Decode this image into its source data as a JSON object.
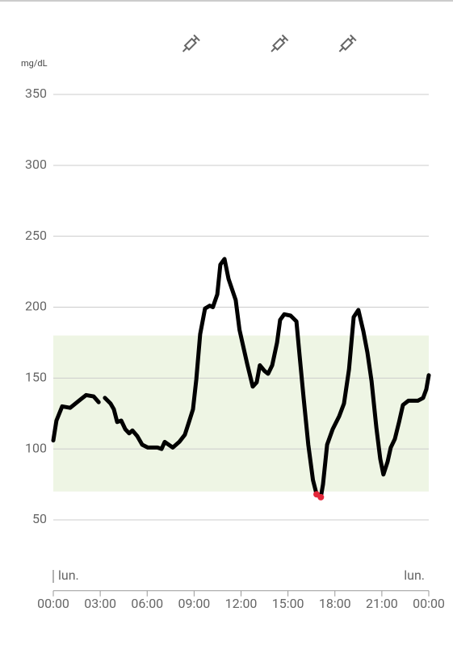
{
  "chart_data": {
    "type": "line",
    "y_unit": "mg/dL",
    "x": [
      0,
      0.2,
      0.57,
      1.08,
      1.75,
      2.1,
      2.58,
      2.9,
      3.1,
      3.3,
      3.66,
      3.87,
      4.08,
      4.34,
      4.6,
      4.85,
      5.06,
      5.37,
      5.68,
      6.04,
      6.66,
      6.92,
      7.12,
      7.64,
      8.05,
      8.41,
      8.67,
      8.93,
      9.14,
      9.39,
      9.7,
      10.0,
      10.2,
      10.48,
      10.68,
      10.94,
      11.2,
      11.66,
      11.9,
      12.39,
      12.75,
      13.0,
      13.2,
      13.5,
      13.73,
      13.99,
      14.3,
      14.5,
      14.76,
      15.17,
      15.54,
      15.74,
      16.0,
      16.3,
      16.6,
      16.83,
      17.1,
      17.24,
      17.5,
      17.86,
      18.27,
      18.58,
      18.9,
      19.2,
      19.5,
      19.82,
      20.08,
      20.34,
      20.65,
      20.9,
      21.1,
      21.37,
      21.57,
      21.83,
      22.1,
      22.35,
      22.7,
      23.3,
      23.64,
      23.84,
      24.0
    ],
    "values": [
      106,
      120,
      130,
      129,
      135,
      138,
      137,
      133,
      null,
      136,
      132,
      128,
      119,
      120,
      114,
      111,
      113,
      109,
      103,
      101,
      101,
      100,
      105,
      101,
      105,
      110,
      119,
      128,
      149,
      181,
      199,
      201,
      200,
      209,
      230,
      234,
      220,
      205,
      184,
      160,
      144,
      147,
      159,
      155,
      153,
      159,
      175,
      191,
      195,
      194,
      190,
      166,
      136,
      103,
      78,
      68,
      66,
      75,
      103,
      114,
      123,
      132,
      156,
      193,
      198,
      183,
      168,
      148,
      115,
      93,
      82,
      91,
      101,
      107,
      119,
      131,
      134,
      134,
      136,
      142,
      152
    ],
    "color": "#000000",
    "low_color": "#e3283a",
    "target_range": [
      70,
      180
    ],
    "target_color": "#eef5e4",
    "insulin_times": [
      8.8,
      14.45,
      18.8
    ],
    "day_labels": [
      "lun.",
      "lun."
    ],
    "xlim": [
      0,
      24
    ],
    "xticks": [
      {
        "value": 0,
        "label": "00:00"
      },
      {
        "value": 3,
        "label": "03:00"
      },
      {
        "value": 6,
        "label": "06:00"
      },
      {
        "value": 9,
        "label": "09:00"
      },
      {
        "value": 12,
        "label": "12:00"
      },
      {
        "value": 15,
        "label": "15:00"
      },
      {
        "value": 18,
        "label": "18:00"
      },
      {
        "value": 21,
        "label": "21:00"
      },
      {
        "value": 24,
        "label": "00:00"
      }
    ],
    "ylim": [
      0,
      350
    ],
    "yticks": [
      50,
      100,
      150,
      200,
      250,
      300,
      350
    ],
    "grid": true
  }
}
